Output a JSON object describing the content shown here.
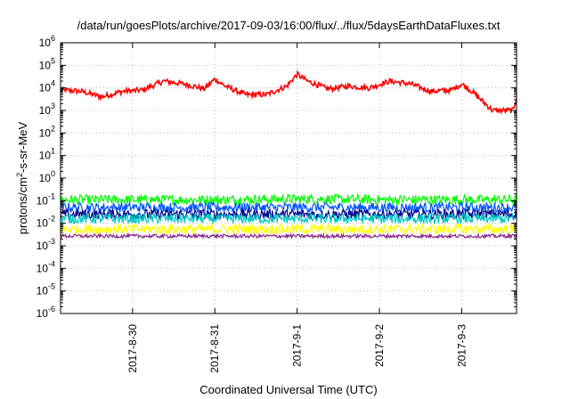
{
  "chart_data": {
    "type": "line",
    "title": "/data/run/goesPlots/archive/2017-09-03/16:00/flux/../flux/5daysEarthDataFluxes.txt",
    "xlabel": "Coordinated Universal Time (UTC)",
    "ylabel_pre": "protons/cm",
    "ylabel_sup": "2",
    "ylabel_post": "-s-sr-MeV",
    "y_scale": "log",
    "ylim": [
      1e-06,
      1000000.0
    ],
    "y_ticks": [
      {
        "base": "10",
        "exp": "-6",
        "value": 1e-06
      },
      {
        "base": "10",
        "exp": "-5",
        "value": 1e-05
      },
      {
        "base": "10",
        "exp": "-4",
        "value": 0.0001
      },
      {
        "base": "10",
        "exp": "-3",
        "value": 0.001
      },
      {
        "base": "10",
        "exp": "-2",
        "value": 0.01
      },
      {
        "base": "10",
        "exp": "-1",
        "value": 0.1
      },
      {
        "base": "10",
        "exp": "0",
        "value": 1
      },
      {
        "base": "10",
        "exp": "1",
        "value": 10.0
      },
      {
        "base": "10",
        "exp": "2",
        "value": 100.0
      },
      {
        "base": "10",
        "exp": "3",
        "value": 1000.0
      },
      {
        "base": "10",
        "exp": "4",
        "value": 10000.0
      },
      {
        "base": "10",
        "exp": "5",
        "value": 100000.0
      },
      {
        "base": "10",
        "exp": "6",
        "value": 1000000.0
      }
    ],
    "xlim": [
      "2017-08-29T03:00",
      "2017-09-03T16:00"
    ],
    "x_ticks": [
      "2017-8-30",
      "2017-8-31",
      "2017-9-1",
      "2017-9-2",
      "2017-9-3"
    ],
    "grid": true,
    "series": [
      {
        "color": "#ff0000",
        "x": [
          "2017-08-29T03:00",
          "2017-08-29T09:00",
          "2017-08-29T15:00",
          "2017-08-29T21:00",
          "2017-08-30T03:00",
          "2017-08-30T09:00",
          "2017-08-30T15:00",
          "2017-08-30T21:00",
          "2017-08-31T00:00",
          "2017-08-31T03:00",
          "2017-08-31T09:00",
          "2017-08-31T15:00",
          "2017-08-31T21:00",
          "2017-09-01T00:00",
          "2017-09-01T03:00",
          "2017-09-01T09:00",
          "2017-09-01T15:00",
          "2017-09-01T21:00",
          "2017-09-02T03:00",
          "2017-09-02T09:00",
          "2017-09-02T15:00",
          "2017-09-02T21:00",
          "2017-09-03T00:00",
          "2017-09-03T03:00",
          "2017-09-03T09:00",
          "2017-09-03T15:00",
          "2017-09-03T16:00"
        ],
        "values": [
          8000,
          7000,
          4000,
          7000,
          8000,
          20000,
          15000,
          9000,
          25000,
          12000,
          5000,
          5000,
          12000,
          40000,
          20000,
          9000,
          12000,
          10000,
          20000,
          15000,
          7000,
          8000,
          15000,
          7000,
          1000,
          1000,
          4000
        ]
      },
      {
        "color": "#00ff00",
        "x": [
          "2017-08-29T03:00",
          "2017-08-30T03:00",
          "2017-08-31T03:00",
          "2017-09-01T03:00",
          "2017-09-02T03:00",
          "2017-09-03T03:00",
          "2017-09-03T16:00"
        ],
        "values": [
          0.11,
          0.11,
          0.11,
          0.12,
          0.11,
          0.11,
          0.11
        ]
      },
      {
        "color": "#0055ff",
        "x": [
          "2017-08-29T03:00",
          "2017-08-30T03:00",
          "2017-08-31T03:00",
          "2017-09-01T03:00",
          "2017-09-02T03:00",
          "2017-09-03T03:00",
          "2017-09-03T16:00"
        ],
        "values": [
          0.05,
          0.05,
          0.05,
          0.05,
          0.05,
          0.05,
          0.05
        ]
      },
      {
        "color": "#000088",
        "x": [
          "2017-08-29T03:00",
          "2017-08-30T03:00",
          "2017-08-31T03:00",
          "2017-09-01T03:00",
          "2017-09-02T03:00",
          "2017-09-03T03:00",
          "2017-09-03T16:00"
        ],
        "values": [
          0.025,
          0.025,
          0.025,
          0.025,
          0.025,
          0.025,
          0.025
        ]
      },
      {
        "color": "#00c8c8",
        "x": [
          "2017-08-29T03:00",
          "2017-08-30T03:00",
          "2017-08-31T03:00",
          "2017-09-01T03:00",
          "2017-09-02T03:00",
          "2017-09-03T03:00",
          "2017-09-03T16:00"
        ],
        "values": [
          0.016,
          0.016,
          0.016,
          0.016,
          0.016,
          0.016,
          0.016
        ]
      },
      {
        "color": "#ffff00",
        "x": [
          "2017-08-29T03:00",
          "2017-08-30T03:00",
          "2017-08-31T03:00",
          "2017-09-01T03:00",
          "2017-09-02T03:00",
          "2017-09-03T03:00",
          "2017-09-03T16:00"
        ],
        "values": [
          0.0055,
          0.0055,
          0.0055,
          0.0055,
          0.0055,
          0.0055,
          0.0055
        ]
      },
      {
        "color": "#882288",
        "x": [
          "2017-08-29T03:00",
          "2017-08-30T03:00",
          "2017-08-31T03:00",
          "2017-09-01T03:00",
          "2017-09-02T03:00",
          "2017-09-03T03:00",
          "2017-09-03T16:00"
        ],
        "values": [
          0.0027,
          0.0027,
          0.0027,
          0.0027,
          0.0027,
          0.0027,
          0.0027
        ]
      }
    ]
  }
}
